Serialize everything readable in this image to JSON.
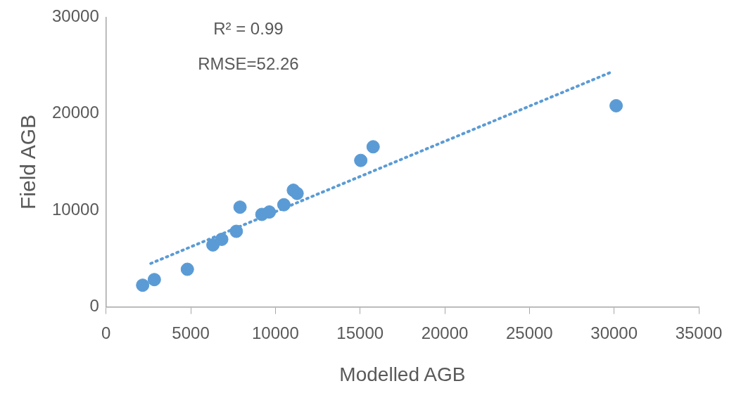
{
  "chart_data": {
    "type": "scatter",
    "xlabel": "Modelled AGB",
    "ylabel": "Field AGB",
    "annotations": [
      "R² = 0.99",
      "RMSE=52.26"
    ],
    "series": [
      {
        "type": "scatter",
        "color": "#5b9bd5",
        "x": [
          2160,
          2850,
          4800,
          6310,
          6830,
          7690,
          7910,
          9200,
          9640,
          10500,
          11060,
          11280,
          15040,
          15770,
          30120
        ],
        "values": [
          2250,
          2830,
          3900,
          6420,
          7000,
          7830,
          10330,
          9580,
          9830,
          10580,
          12080,
          11750,
          15170,
          16580,
          20830
        ],
        "marker": "circle"
      },
      {
        "type": "line",
        "color": "#5b9bd5",
        "x": [
          2640,
          29860
        ],
        "values": [
          4500,
          24330
        ],
        "marker": "none",
        "line_style": "dotted"
      }
    ],
    "xlim": [
      0,
      35000
    ],
    "xticks": [
      0,
      5000,
      10000,
      15000,
      20000,
      25000,
      30000,
      35000
    ],
    "ylim": [
      0,
      30000
    ],
    "yticks": [
      0,
      10000,
      20000,
      30000
    ],
    "grid": false,
    "legend": false
  }
}
